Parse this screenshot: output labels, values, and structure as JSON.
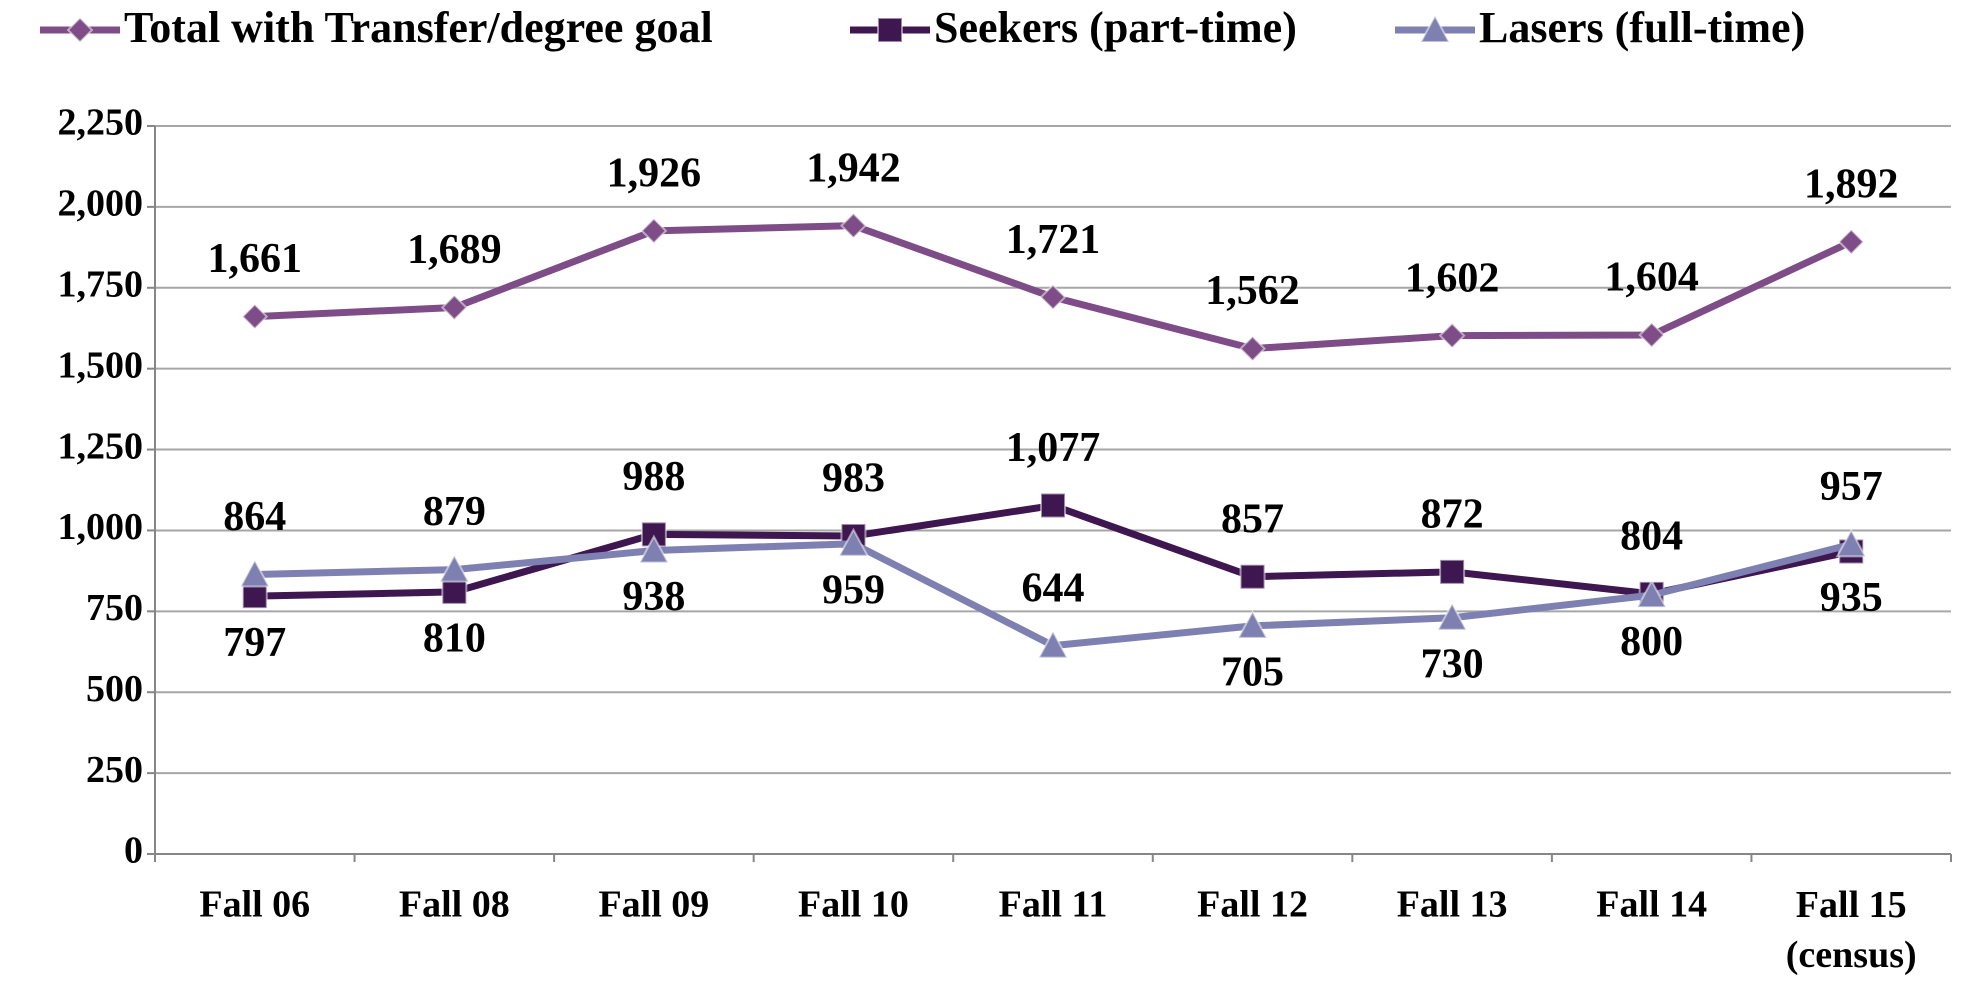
{
  "chart_data": {
    "type": "line",
    "categories": [
      "Fall 06",
      "Fall 08",
      "Fall 09",
      "Fall 10",
      "Fall 11",
      "Fall 12",
      "Fall 13",
      "Fall 14",
      "Fall 15 (census)"
    ],
    "series": [
      {
        "name": "Total with Transfer/degree goal",
        "color": "#7e4d88",
        "marker": "diamond",
        "values": [
          1661,
          1689,
          1926,
          1942,
          1721,
          1562,
          1602,
          1604,
          1892
        ],
        "value_labels": [
          "1,661",
          "1,689",
          "1,926",
          "1,942",
          "1,721",
          "1,562",
          "1,602",
          "1,604",
          "1,892"
        ]
      },
      {
        "name": "Seekers (part-time)",
        "color": "#3e1650",
        "marker": "square",
        "values": [
          797,
          810,
          988,
          983,
          1077,
          857,
          872,
          804,
          935
        ],
        "value_labels": [
          "797",
          "810",
          "988",
          "983",
          "1,077",
          "857",
          "872",
          "804",
          "935"
        ]
      },
      {
        "name": "Lasers (full-time)",
        "color": "#7f80b2",
        "marker": "triangle",
        "values": [
          864,
          879,
          938,
          959,
          644,
          705,
          730,
          800,
          957
        ],
        "value_labels": [
          "864",
          "879",
          "938",
          "959",
          "644",
          "705",
          "730",
          "800",
          "957"
        ]
      }
    ],
    "ylim": [
      0,
      2250
    ],
    "yticks": [
      0,
      250,
      500,
      750,
      {
        "value": 1000,
        "label": "1,000"
      },
      {
        "value": 1250,
        "label": "1,250"
      },
      {
        "value": 1500,
        "label": "1,500"
      },
      {
        "value": 1750,
        "label": "1,750"
      },
      {
        "value": 2000,
        "label": "2,000"
      },
      {
        "value": 2250,
        "label": "2,250"
      }
    ],
    "grid": true,
    "legend": "top"
  }
}
